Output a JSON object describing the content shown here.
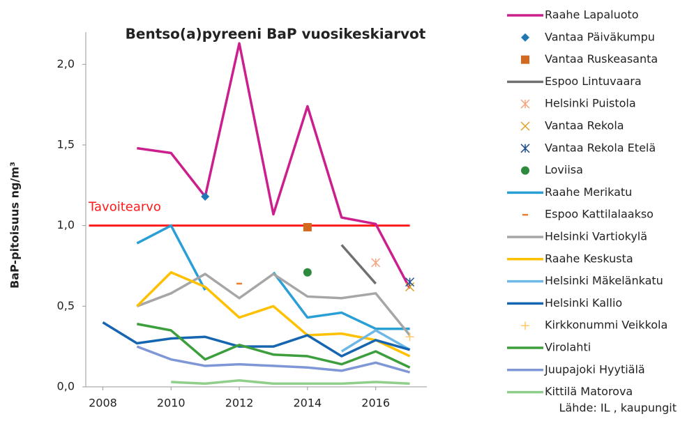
{
  "chart_data": {
    "type": "line",
    "title": "Bentso(a)pyreeni BaP vuosikeskiarvot",
    "y_label": "BaP-pitoisuus ng/m³",
    "source": "Lähde: IL , kaupungit",
    "x": [
      2008,
      2009,
      2010,
      2011,
      2012,
      2013,
      2014,
      2015,
      2016,
      2017
    ],
    "xlim": [
      2007.5,
      2017.5
    ],
    "xticks": [
      2008,
      2010,
      2012,
      2014,
      2016
    ],
    "ylim": [
      0,
      2.2
    ],
    "yticks": [
      {
        "value": 0,
        "label": "0,0"
      },
      {
        "value": 0.5,
        "label": "0,5"
      },
      {
        "value": 1,
        "label": "1,0"
      },
      {
        "value": 1.5,
        "label": "1,5"
      },
      {
        "value": 2,
        "label": "2,0"
      }
    ],
    "grid": false,
    "legend": "right",
    "reference_line": {
      "label": "Tavoitearvo",
      "value": 1,
      "color": "#ff1a1a",
      "x": [
        2008,
        2017
      ]
    },
    "series": [
      {
        "name": "Raahe Lapaluoto",
        "color": "#cc1f8e",
        "marker": "line",
        "values": [
          null,
          1.48,
          1.45,
          1.18,
          2.13,
          1.07,
          1.74,
          1.05,
          1.01,
          0.61
        ]
      },
      {
        "name": "Vantaa Päiväkumpu",
        "color": "#1f78b4",
        "marker": "diamond",
        "values": [
          null,
          null,
          null,
          1.18,
          null,
          null,
          null,
          null,
          null,
          null
        ]
      },
      {
        "name": "Vantaa Ruskeasanta",
        "color": "#d2691e",
        "marker": "square",
        "values": [
          null,
          null,
          null,
          null,
          null,
          null,
          0.99,
          null,
          null,
          null
        ]
      },
      {
        "name": "Espoo Lintuvaara",
        "color": "#707070",
        "marker": "line",
        "values": [
          null,
          null,
          null,
          null,
          null,
          null,
          null,
          0.88,
          0.64,
          null
        ]
      },
      {
        "name": "Helsinki Puistola",
        "color": "#f4a582",
        "marker": "asterisk",
        "values": [
          null,
          null,
          null,
          null,
          null,
          null,
          null,
          null,
          0.77,
          null
        ]
      },
      {
        "name": "Vantaa Rekola",
        "color": "#e0a020",
        "marker": "x",
        "values": [
          null,
          null,
          null,
          null,
          null,
          null,
          null,
          null,
          null,
          0.62
        ]
      },
      {
        "name": "Vantaa Rekola Etelä",
        "color": "#1f4e8c",
        "marker": "asterisk",
        "values": [
          null,
          null,
          null,
          null,
          null,
          null,
          null,
          null,
          null,
          0.65
        ]
      },
      {
        "name": "Loviisa",
        "color": "#2e8b3e",
        "marker": "circle",
        "values": [
          null,
          null,
          null,
          null,
          null,
          null,
          0.71,
          null,
          null,
          null
        ]
      },
      {
        "name": "Raahe Merikatu",
        "color": "#2a9fd6",
        "marker": "line",
        "values": [
          null,
          0.89,
          1.0,
          0.6,
          null,
          0.71,
          0.43,
          0.46,
          0.36,
          0.36
        ]
      },
      {
        "name": "Espoo Kattilalaakso",
        "color": "#f07d2a",
        "marker": "dash",
        "values": [
          null,
          null,
          null,
          null,
          0.64,
          null,
          null,
          null,
          null,
          null
        ]
      },
      {
        "name": "Helsinki Vartiokylä",
        "color": "#a6a6a6",
        "marker": "line",
        "values": [
          null,
          0.5,
          0.58,
          0.7,
          0.55,
          0.7,
          0.56,
          0.55,
          0.58,
          0.32
        ]
      },
      {
        "name": "Raahe Keskusta",
        "color": "#ffc000",
        "marker": "line",
        "values": [
          null,
          0.5,
          0.71,
          0.62,
          0.43,
          0.5,
          0.32,
          0.33,
          0.29,
          0.19
        ]
      },
      {
        "name": "Helsinki Mäkelänkatu",
        "color": "#6fb7e6",
        "marker": "line",
        "values": [
          null,
          null,
          null,
          null,
          null,
          null,
          null,
          0.22,
          0.35,
          0.23
        ]
      },
      {
        "name": "Helsinki Kallio",
        "color": "#1565b0",
        "marker": "line",
        "values": [
          0.4,
          0.27,
          0.3,
          0.31,
          0.25,
          0.25,
          0.32,
          0.19,
          0.29,
          0.23
        ]
      },
      {
        "name": "Kirkkonummi Veikkola",
        "color": "#ffc966",
        "marker": "plus",
        "values": [
          null,
          null,
          null,
          null,
          null,
          null,
          null,
          null,
          null,
          0.31
        ]
      },
      {
        "name": "Virolahti",
        "color": "#3c9e3c",
        "marker": "line",
        "values": [
          null,
          0.39,
          0.35,
          0.17,
          0.26,
          0.2,
          0.19,
          0.14,
          0.22,
          0.12
        ]
      },
      {
        "name": "Juupajoki Hyytiälä",
        "color": "#7f97d6",
        "marker": "line",
        "values": [
          null,
          0.25,
          0.17,
          0.13,
          0.14,
          0.13,
          0.12,
          0.1,
          0.15,
          0.09
        ]
      },
      {
        "name": "Kittilä Matorova",
        "color": "#8fcf8a",
        "marker": "line",
        "values": [
          null,
          null,
          0.03,
          0.02,
          0.04,
          0.02,
          0.02,
          0.02,
          0.03,
          0.02
        ]
      }
    ]
  }
}
